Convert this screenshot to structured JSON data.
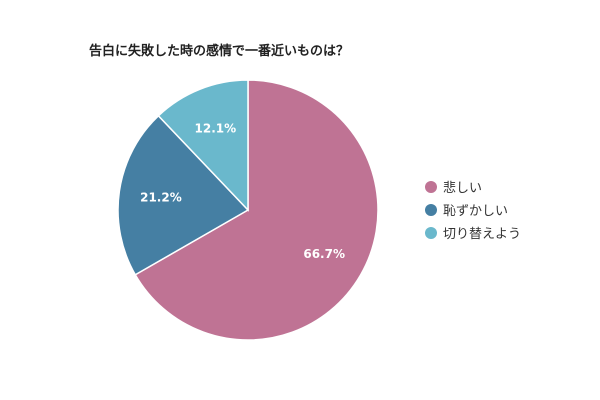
{
  "chart_data": {
    "type": "pie",
    "title": "告白に失敗した時の感情で一番近いものは？",
    "categories": [
      "悲しい",
      "恥ずかしい",
      "切り替えよう"
    ],
    "values": [
      66.7,
      21.2,
      12.1
    ],
    "data_labels": [
      "66.7%",
      "21.2%",
      "12.1%"
    ],
    "colors": [
      "#bf7394",
      "#457fa3",
      "#6ab8cc"
    ],
    "legend_position": "right",
    "start_angle": "top",
    "direction": "clockwise"
  }
}
